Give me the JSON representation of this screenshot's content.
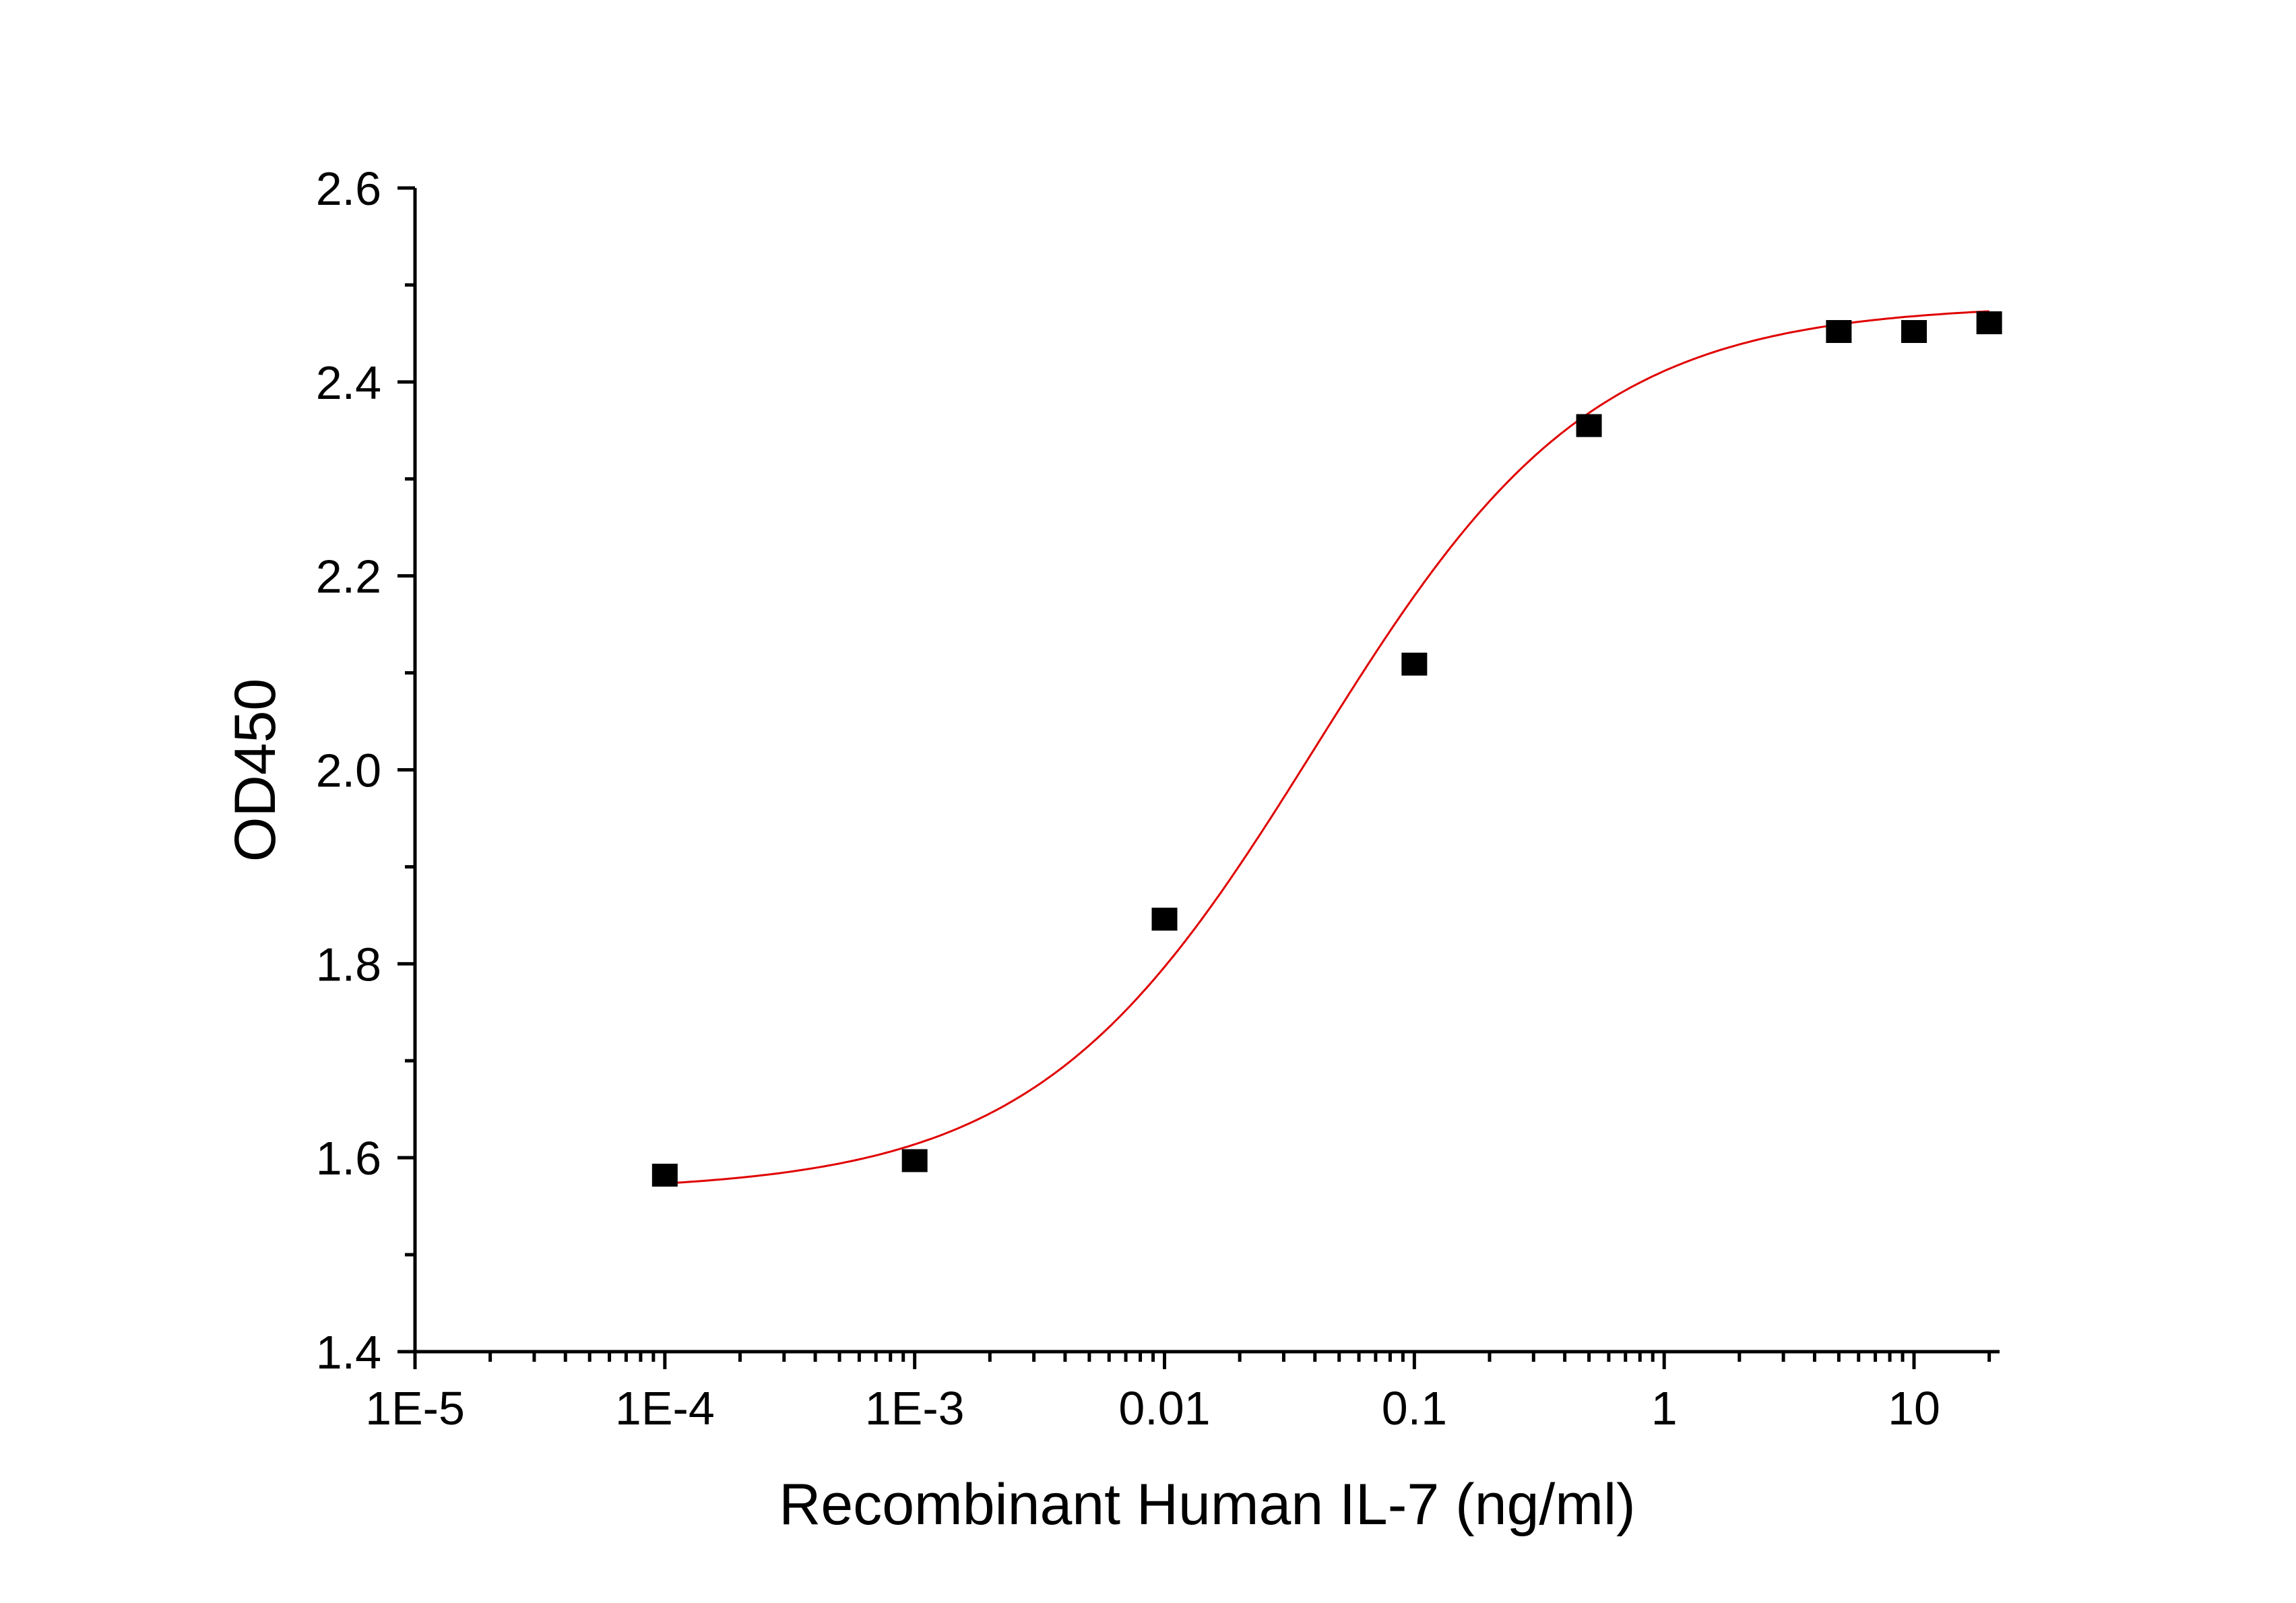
{
  "chart_data": {
    "type": "scatter",
    "title": "",
    "xlabel": "Recombinant Human IL-7 (ng/ml)",
    "ylabel": "OD450",
    "x_scale": "log",
    "xlim": [
      1e-05,
      22
    ],
    "ylim": [
      1.4,
      2.6
    ],
    "x_ticks": [
      1e-05,
      0.0001,
      0.001,
      0.01,
      0.1,
      1,
      10
    ],
    "x_tick_labels": [
      "1E-5",
      "1E-4",
      "1E-3",
      "0.01",
      "0.1",
      "1",
      "10"
    ],
    "y_ticks": [
      1.4,
      1.6,
      1.8,
      2.0,
      2.2,
      2.4,
      2.6
    ],
    "y_tick_labels": [
      "1.4",
      "1.6",
      "1.8",
      "2.0",
      "2.2",
      "2.4",
      "2.6"
    ],
    "grid": false,
    "legend": "none",
    "series": [
      {
        "marker": "square",
        "color": "#000000",
        "x": [
          0.0001,
          0.001,
          0.01,
          0.1,
          0.5,
          5,
          10,
          20
        ],
        "y": [
          1.582,
          1.597,
          1.846,
          2.109,
          2.355,
          2.452,
          2.452,
          2.461
        ]
      }
    ],
    "fit_curve": {
      "model": "4PL",
      "color": "#e00000",
      "bottom": 1.565,
      "top": 2.48,
      "ec50": 0.04,
      "hill": 0.78
    }
  }
}
